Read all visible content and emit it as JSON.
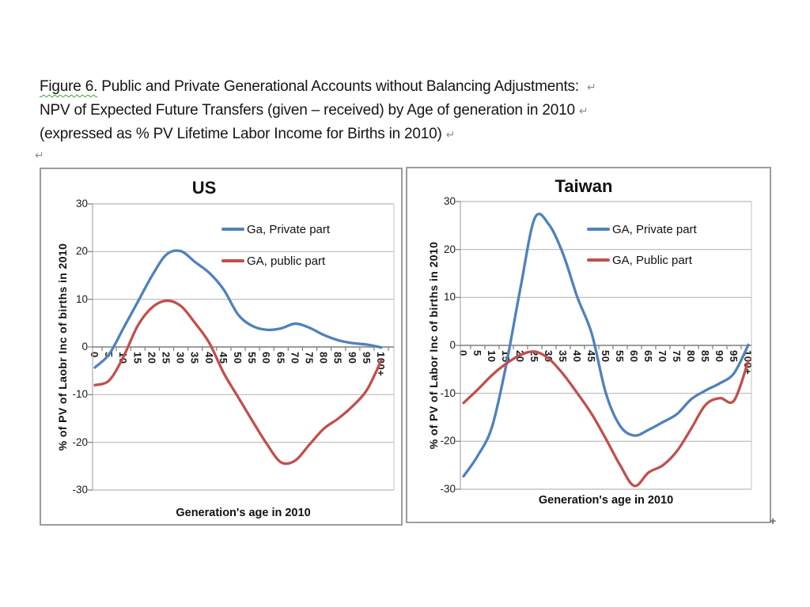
{
  "document": {
    "title": {
      "line1_flagged": "Figure 6.",
      "line1_rest": " Public and Private Generational Accounts without Balancing Adjustments: ",
      "line2": "NPV of Expected Future Transfers (given – received) by Age of generation in 2010",
      "line3": "(expressed as % PV Lifetime Labor Income for Births in 2010)",
      "linebreak_mark": "↵",
      "paragraph_mark": "↵"
    },
    "object_anchor_mark": "+"
  },
  "chart_data": [
    {
      "type": "line",
      "title": "US",
      "xlabel": "Generation's age in 2010",
      "ylabel": "% of PV of Laobr Inc of births in 2010",
      "ylim": [
        -30,
        30
      ],
      "yticks": [
        30,
        20,
        10,
        0,
        -10,
        -20,
        -30
      ],
      "grid": true,
      "legend_position": "inside-upper-right",
      "categories": [
        "0",
        "5",
        "10",
        "15",
        "20",
        "25",
        "30",
        "35",
        "40",
        "45",
        "50",
        "55",
        "60",
        "65",
        "70",
        "75",
        "80",
        "85",
        "90",
        "95",
        "100+"
      ],
      "series": [
        {
          "name": "Ga, Private part",
          "color": "#4F81BD",
          "values": [
            -4.3,
            -1.5,
            4,
            9.5,
            15,
            19.4,
            20.1,
            17.8,
            15.5,
            12,
            6.8,
            4.4,
            3.6,
            3.9,
            4.9,
            4,
            2.5,
            1.4,
            0.8,
            0.5,
            -0.1
          ]
        },
        {
          "name": "GA, public part",
          "color": "#C0504D",
          "values": [
            -8,
            -7,
            -2,
            4.5,
            8.3,
            9.7,
            8.6,
            5,
            0.8,
            -5.5,
            -10.5,
            -15.5,
            -20.3,
            -24.2,
            -23.8,
            -20.4,
            -17.1,
            -15,
            -12.4,
            -9,
            -2.8
          ]
        }
      ]
    },
    {
      "type": "line",
      "title": "Taiwan",
      "xlabel": "Generation's age in 2010",
      "ylabel": "% of PV of Labor Inc of births in 2010",
      "ylim": [
        -30,
        30
      ],
      "yticks": [
        30,
        20,
        10,
        0,
        -10,
        -20,
        -30
      ],
      "grid": true,
      "legend_position": "inside-upper-right",
      "categories": [
        "0",
        "5",
        "10",
        "15",
        "20",
        "25",
        "30",
        "35",
        "40",
        "45",
        "50",
        "55",
        "60",
        "65",
        "70",
        "75",
        "80",
        "85",
        "90",
        "95",
        "100+"
      ],
      "series": [
        {
          "name": "GA, Private part",
          "color": "#4F81BD",
          "values": [
            -27.3,
            -23,
            -17,
            -4,
            12,
            26.5,
            25.2,
            19,
            10,
            2.5,
            -10,
            -16.8,
            -18.8,
            -17.6,
            -16,
            -14.3,
            -11.2,
            -9.4,
            -7.9,
            -5.8,
            0.1
          ]
        },
        {
          "name": "GA, Public part",
          "color": "#C0504D",
          "values": [
            -12,
            -9.2,
            -6.2,
            -3.8,
            -2,
            -1.3,
            -2.8,
            -6,
            -10,
            -14.3,
            -19.5,
            -25,
            -29.3,
            -26.5,
            -25,
            -22,
            -17.3,
            -12.4,
            -11,
            -11.5,
            -3.2
          ]
        }
      ]
    }
  ]
}
